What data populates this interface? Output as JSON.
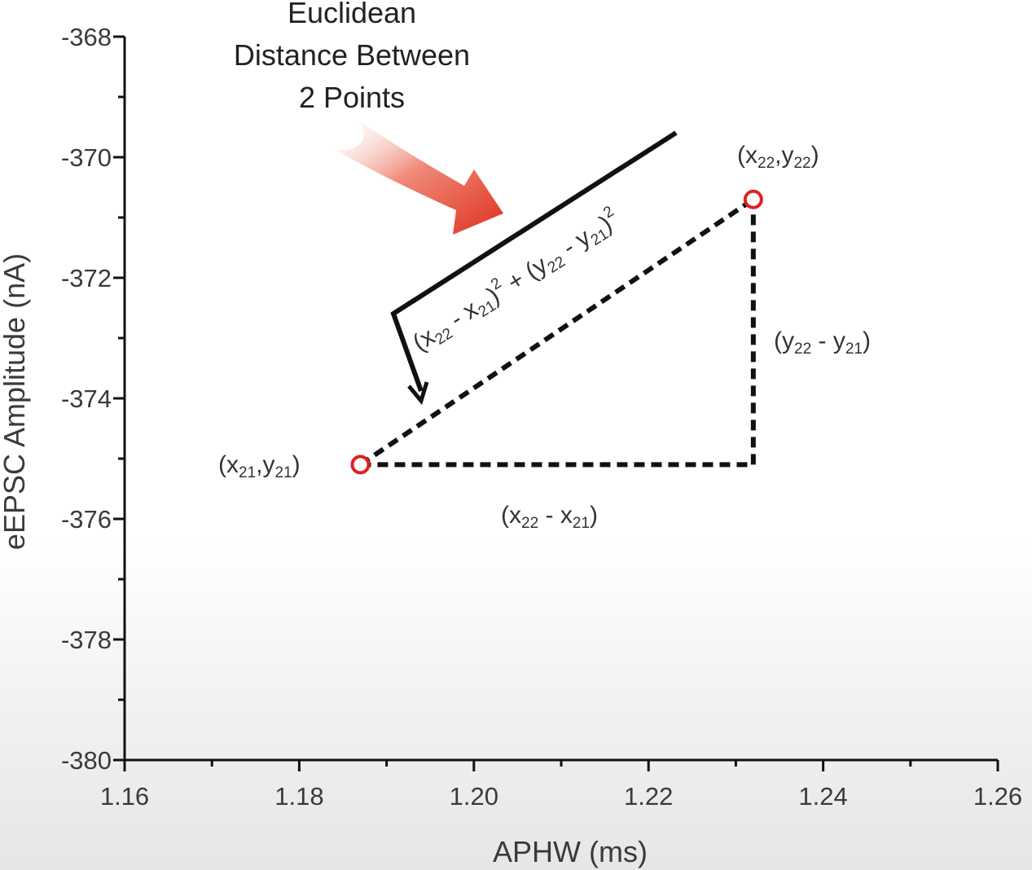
{
  "chart_data": {
    "type": "scatter",
    "title": "",
    "xlabel": "APHW (ms)",
    "ylabel": "eEPSC Amplitude (nA)",
    "xlim": [
      1.16,
      1.26
    ],
    "ylim": [
      -380,
      -368
    ],
    "x_ticks": [
      "1.16",
      "1.18",
      "1.20",
      "1.22",
      "1.24",
      "1.26"
    ],
    "y_ticks": [
      "-368",
      "-370",
      "-372",
      "-374",
      "-376",
      "-378",
      "-380"
    ],
    "grid": false,
    "points": [
      {
        "x": 1.187,
        "y": -375.1,
        "label_var": "x",
        "label_sub": "21",
        "label_var2": "y",
        "label_sub2": "21"
      },
      {
        "x": 1.232,
        "y": -370.7,
        "label_var": "x",
        "label_sub": "22",
        "label_var2": "y",
        "label_sub2": "22"
      }
    ],
    "annotations": {
      "title_lines": [
        "Euclidean",
        "Distance Between",
        "2 Points"
      ],
      "dx_label": {
        "a": "x",
        "a_sub": "22",
        "op": "-",
        "b": "x",
        "b_sub": "21"
      },
      "dy_label": {
        "a": "y",
        "a_sub": "22",
        "op": "-",
        "b": "y",
        "b_sub": "21"
      },
      "formula": {
        "a": "x",
        "a_sub": "22",
        "b": "x",
        "b_sub": "21",
        "c": "y",
        "c_sub": "22",
        "d": "y",
        "d_sub": "21",
        "exp": "2",
        "plus": "+"
      }
    },
    "colors": {
      "point": "#dd2222",
      "arrow": "#e0301e",
      "axis": "#111111"
    }
  }
}
